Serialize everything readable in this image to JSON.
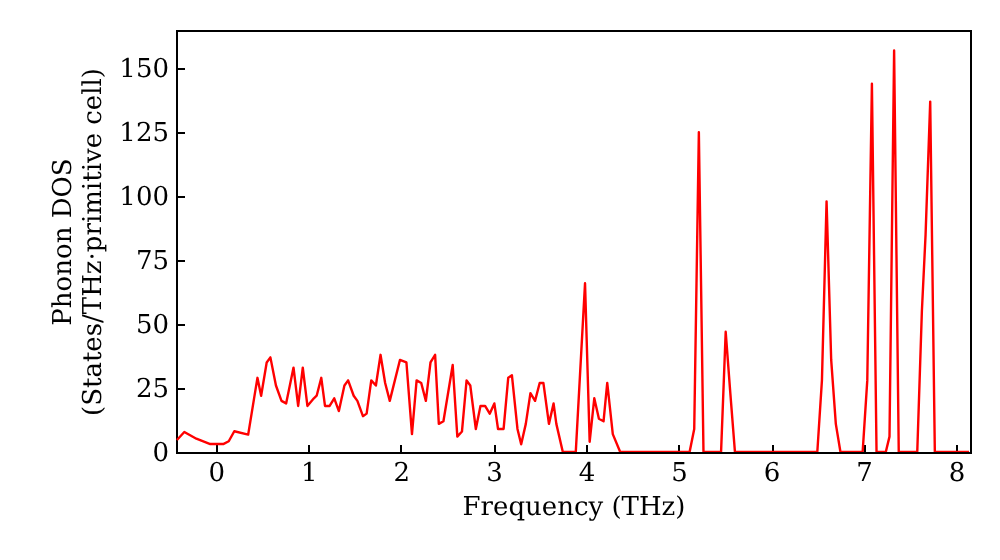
{
  "chart_data": {
    "type": "line",
    "xlabel": "Frequency (THz)",
    "ylabel": "Phonon DOS\n(States/THz·primitive cell)",
    "xlim": [
      -0.43,
      8.15
    ],
    "ylim": [
      0,
      165
    ],
    "xticks": [
      0,
      1,
      2,
      3,
      4,
      5,
      6,
      7,
      8
    ],
    "yticks": [
      0,
      25,
      50,
      75,
      100,
      125,
      150
    ],
    "grid": false,
    "marker": "none",
    "line_style": "solid",
    "x": [
      -0.42,
      -0.34,
      -0.21,
      -0.06,
      0.08,
      0.14,
      0.2,
      0.35,
      0.45,
      0.49,
      0.55,
      0.59,
      0.65,
      0.71,
      0.76,
      0.84,
      0.89,
      0.94,
      0.99,
      1.06,
      1.09,
      1.14,
      1.18,
      1.23,
      1.28,
      1.33,
      1.39,
      1.43,
      1.49,
      1.53,
      1.59,
      1.63,
      1.68,
      1.73,
      1.78,
      1.83,
      1.88,
      1.99,
      2.06,
      2.12,
      2.17,
      2.22,
      2.27,
      2.32,
      2.37,
      2.41,
      2.46,
      2.56,
      2.61,
      2.66,
      2.71,
      2.75,
      2.81,
      2.86,
      2.91,
      2.96,
      3.01,
      3.05,
      3.11,
      3.16,
      3.2,
      3.26,
      3.3,
      3.35,
      3.4,
      3.45,
      3.5,
      3.54,
      3.6,
      3.65,
      3.68,
      3.75,
      3.89,
      3.99,
      4.04,
      4.09,
      4.14,
      4.19,
      4.23,
      4.29,
      4.37,
      5.12,
      5.17,
      5.22,
      5.27,
      5.46,
      5.51,
      5.56,
      5.61,
      6.5,
      6.55,
      6.6,
      6.65,
      6.7,
      6.75,
      6.99,
      7.04,
      7.09,
      7.14,
      7.24,
      7.28,
      7.33,
      7.38,
      7.58,
      7.63,
      7.67,
      7.72,
      7.77,
      8.03,
      8.14
    ],
    "series": [
      {
        "color": "#ff0000",
        "values": [
          4.7,
          7.8,
          5.2,
          3.1,
          3.1,
          4.2,
          8.1,
          6.8,
          29,
          22,
          35,
          37,
          26,
          20,
          19,
          33,
          18,
          33,
          18,
          21,
          22,
          29,
          18,
          18,
          21,
          16,
          26,
          28,
          22,
          20,
          14,
          15,
          28,
          26,
          38,
          27,
          20,
          36,
          35,
          7,
          28,
          27,
          20,
          35,
          38,
          11,
          12,
          34,
          6,
          8,
          28,
          26,
          9,
          18,
          18,
          15,
          19,
          9,
          9,
          29,
          30,
          9,
          3,
          11,
          23,
          20,
          27,
          27,
          11,
          19,
          11,
          0,
          0,
          66,
          4,
          21,
          13,
          12,
          27,
          7,
          0,
          0,
          9,
          125,
          0,
          0,
          47,
          23,
          0,
          0,
          28,
          98,
          36,
          11,
          0,
          0,
          28,
          144,
          0,
          0,
          6,
          157,
          0,
          0,
          55,
          85,
          137,
          0,
          0,
          0
        ]
      }
    ]
  }
}
